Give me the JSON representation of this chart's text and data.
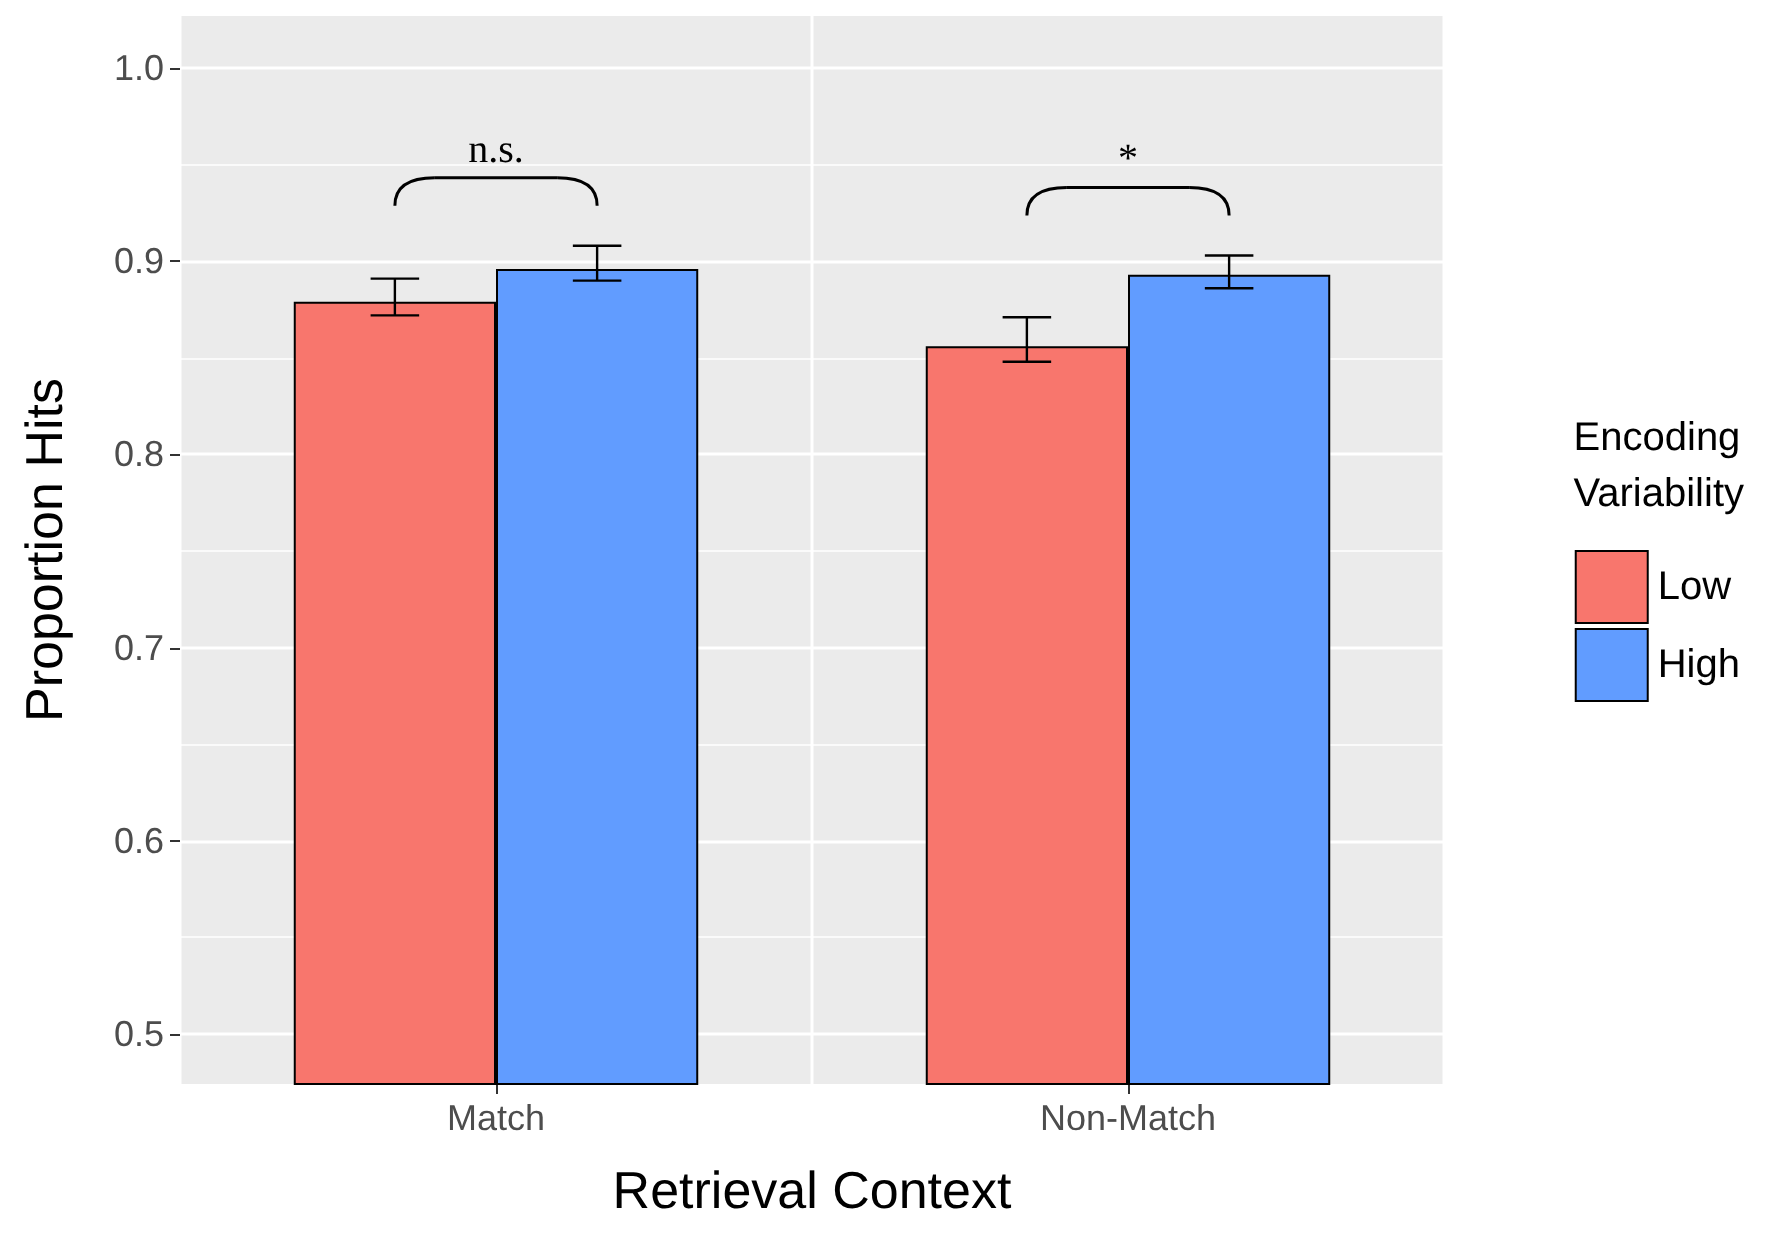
{
  "chart_data": {
    "type": "bar",
    "xlabel": "Retrieval Context",
    "ylabel": "Proportion Hits",
    "legend_title": "Encoding\nVariability",
    "categories": [
      "Match",
      "Non-Match"
    ],
    "series": [
      {
        "name": "Low",
        "color": "#f8766d",
        "values": [
          0.879,
          0.856
        ],
        "errors": [
          [
            0.872,
            0.891
          ],
          [
            0.848,
            0.871
          ]
        ]
      },
      {
        "name": "High",
        "color": "#619cff",
        "values": [
          0.896,
          0.893
        ],
        "errors": [
          [
            0.89,
            0.908
          ],
          [
            0.886,
            0.903
          ]
        ]
      }
    ],
    "ylim": [
      0.474,
      1.027
    ],
    "yticks": [
      0.5,
      0.6,
      0.7,
      0.8,
      0.9,
      {
        "value": 1,
        "label": "1.0"
      }
    ],
    "grid": true,
    "legend": "right",
    "annotations": [
      "n.s.",
      "*"
    ]
  }
}
